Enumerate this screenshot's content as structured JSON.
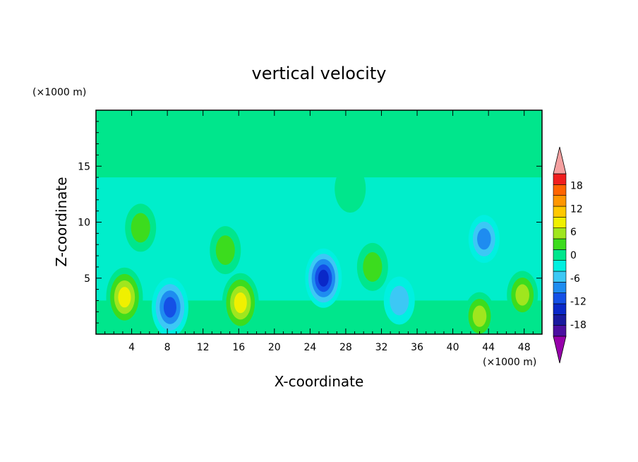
{
  "chart_data": {
    "type": "heatmap",
    "title": "vertical velocity",
    "xlabel": "X-coordinate",
    "ylabel": "Z-coordinate",
    "x_unit": "(×1000 m)",
    "y_unit": "(×1000 m)",
    "xlim": [
      0,
      50
    ],
    "ylim": [
      0,
      20
    ],
    "x_ticks": [
      "4",
      "8",
      "12",
      "16",
      "20",
      "24",
      "28",
      "32",
      "36",
      "40",
      "44",
      "48"
    ],
    "y_ticks": [
      "5",
      "10",
      "15"
    ],
    "colorbar": {
      "levels": [
        -21,
        -18,
        -15,
        -12,
        -9,
        -6,
        -3,
        0,
        3,
        6,
        9,
        12,
        15,
        18,
        21
      ],
      "tick_labels": [
        "18",
        "12",
        "6",
        "0",
        "-6",
        "-12",
        "-18"
      ],
      "colors": [
        "#4b0fa0",
        "#1a1a9e",
        "#0a28c8",
        "#1450e6",
        "#1e8cf0",
        "#3cc8f5",
        "#00f0e0",
        "#00e68c",
        "#3cdc1e",
        "#a0e61e",
        "#f0f000",
        "#ffc800",
        "#ff9600",
        "#ff6400",
        "#f01e1e"
      ],
      "over_color": "#f5a0a0",
      "under_color": "#9600aa"
    },
    "features": [
      {
        "x": 3.2,
        "z": 3.3,
        "value": 12
      },
      {
        "x": 5.0,
        "z": 9.5,
        "value": 6
      },
      {
        "x": 8.3,
        "z": 2.4,
        "value": -12
      },
      {
        "x": 14.5,
        "z": 7.5,
        "value": 6
      },
      {
        "x": 16.2,
        "z": 2.8,
        "value": 12
      },
      {
        "x": 25.5,
        "z": 5.0,
        "value": -15
      },
      {
        "x": 28.5,
        "z": 13.0,
        "value": 4
      },
      {
        "x": 31.0,
        "z": 6.0,
        "value": 6
      },
      {
        "x": 34.0,
        "z": 3.0,
        "value": -6
      },
      {
        "x": 43.0,
        "z": 1.6,
        "value": 9
      },
      {
        "x": 47.8,
        "z": 3.5,
        "value": 9
      },
      {
        "x": 43.5,
        "z": 8.5,
        "value": -8
      }
    ]
  }
}
